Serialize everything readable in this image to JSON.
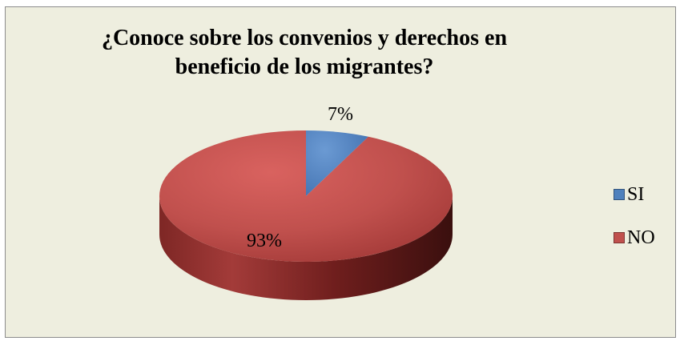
{
  "chart_data": {
    "type": "pie",
    "title": "¿Conoce sobre los convenios y derechos en beneficio de los migrantes?",
    "categories": [
      "SI",
      "NO"
    ],
    "values": [
      7,
      93
    ],
    "data_labels": [
      "7%",
      "93%"
    ],
    "colors": [
      "#4f81bd",
      "#c0504d"
    ],
    "legend_position": "right",
    "style": "3d"
  }
}
